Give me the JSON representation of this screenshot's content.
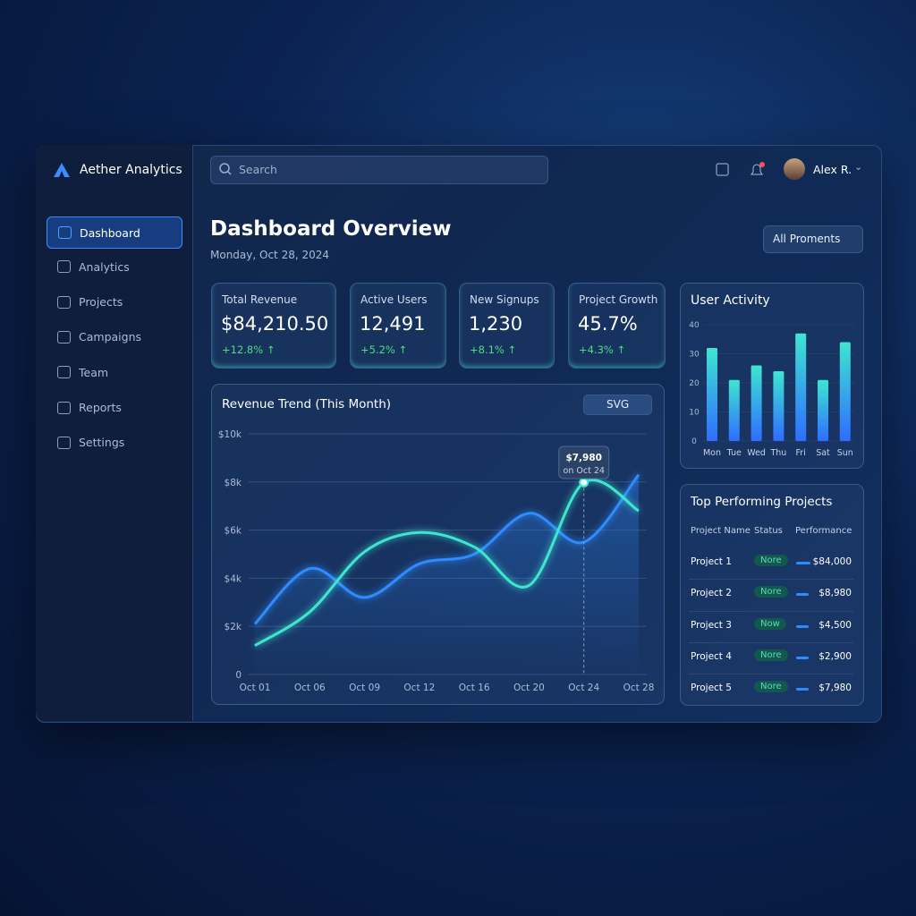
{
  "brand": "Aether Analytics",
  "search": "Search",
  "user": "Alex R.",
  "nav": [
    "Dashboard",
    "Analytics",
    "Projects",
    "Campaigns",
    "Team",
    "Reports",
    "Settings"
  ],
  "header": {
    "title": "Dashboard Overview",
    "date": "Monday, Oct 28, 2024",
    "filter": "All Proments"
  },
  "kpis": [
    {
      "label": "Total Revenue",
      "value": "$84,210.50",
      "change": "+12.8% ↑"
    },
    {
      "label": "Active Users",
      "value": "12,491",
      "change": "+5.2% ↑"
    },
    {
      "label": "New Signups",
      "value": "1,230",
      "change": "+8.1% ↑"
    },
    {
      "label": "Project Growth",
      "value": "45.7%",
      "change": "+4.3% ↑"
    }
  ],
  "revenue_chart": {
    "type": "line",
    "title": "Revenue Trend (This Month)",
    "toggle": "SVG",
    "categories": [
      "Oct 01",
      "Oct 06",
      "Oct 09",
      "Oct 12",
      "Oct 16",
      "Oct 20",
      "Oct 24",
      "Oct 28"
    ],
    "series": [
      {
        "color": "#2f8cff",
        "values": [
          2100,
          4400,
          3200,
          4600,
          5000,
          6700,
          5500,
          8300
        ]
      },
      {
        "color": "#3ee6d0",
        "values": [
          1200,
          2600,
          5100,
          5900,
          5300,
          3700,
          7980,
          6800
        ]
      }
    ],
    "ylim": [
      0,
      10000
    ],
    "yticks": [
      {
        "value": 0,
        "label": "0"
      },
      {
        "value": 2000,
        "label": "$2k"
      },
      {
        "value": 4000,
        "label": "$4k"
      },
      {
        "value": 6000,
        "label": "$6k"
      },
      {
        "value": 8000,
        "label": "$8k"
      },
      {
        "value": 10000,
        "label": "$10k"
      }
    ],
    "grid": true,
    "tooltip": {
      "value": "$7,980",
      "sub": "on Oct 24"
    }
  },
  "activity_chart": {
    "type": "bar",
    "title": "User Activity",
    "categories": [
      "Mon",
      "Tue",
      "Wed",
      "Thu",
      "Fri",
      "Sat",
      "Sun"
    ],
    "values": [
      32,
      21,
      26,
      24,
      37,
      21,
      34
    ],
    "ylim": [
      0,
      40
    ],
    "yticks": [
      0,
      10,
      20,
      30,
      40
    ],
    "color": "#2fb8f0"
  },
  "projects": {
    "title": "Top Performing Projects",
    "columns": [
      "Project Name",
      "Status",
      "Performance"
    ],
    "rows": [
      [
        "Project 1",
        "Nore",
        "$84,000"
      ],
      [
        "Project 2",
        "Nore",
        "$8,980"
      ],
      [
        "Project 3",
        "Now",
        "$4,500"
      ],
      [
        "Project 4",
        "Nore",
        "$2,900"
      ],
      [
        "Project 5",
        "Nore",
        "$7,980"
      ]
    ]
  }
}
